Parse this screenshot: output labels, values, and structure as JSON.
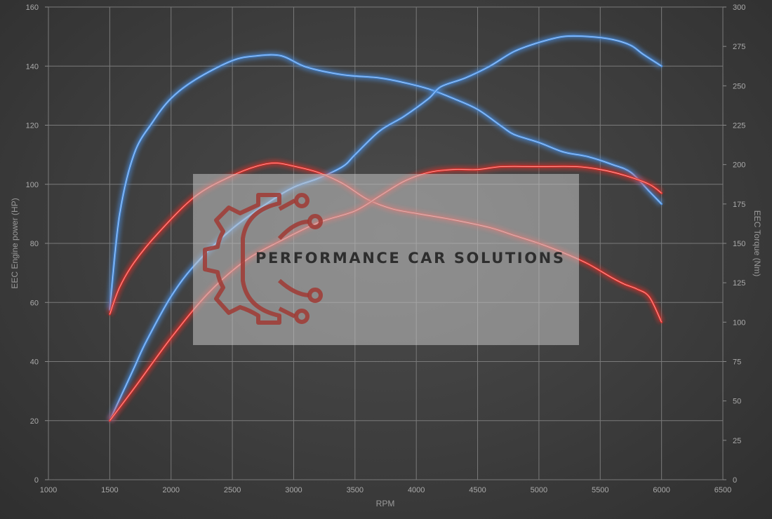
{
  "chart_data": {
    "type": "line",
    "xlabel": "RPM",
    "ylabel": "EEC Engine power (HP)",
    "y2label": "EEC Torque (Nm)",
    "xlim": [
      1000,
      6500
    ],
    "ylim": [
      0,
      160
    ],
    "y2lim": [
      0,
      300
    ],
    "x_ticks": [
      1000,
      1500,
      2000,
      2500,
      3000,
      3500,
      4000,
      4500,
      5000,
      5500,
      6000,
      6500
    ],
    "y_ticks": [
      0,
      20,
      40,
      60,
      80,
      100,
      120,
      140,
      160
    ],
    "y2_ticks": [
      0,
      25,
      50,
      75,
      100,
      125,
      150,
      175,
      200,
      225,
      250,
      275,
      300
    ],
    "grid": true,
    "series": [
      {
        "axis": "right",
        "color": "#4a90e2",
        "x": [
          1500,
          1580,
          1700,
          1850,
          2000,
          2200,
          2500,
          2700,
          2900,
          3100,
          3400,
          3700,
          3900,
          4100,
          4300,
          4500,
          4700,
          4800,
          5000,
          5200,
          5400,
          5600,
          5750,
          5900,
          6000
        ],
        "y": [
          108,
          168,
          207,
          227,
          242,
          254,
          266,
          269,
          269,
          262,
          257,
          255,
          252,
          248,
          242,
          235,
          224,
          219,
          214,
          208,
          205,
          200,
          195,
          183,
          175
        ]
      },
      {
        "axis": "left",
        "color": "#4a90e2",
        "x": [
          1500,
          1600,
          1700,
          1800,
          2000,
          2200,
          2500,
          2800,
          3000,
          3200,
          3400,
          3500,
          3700,
          3900,
          4100,
          4200,
          4400,
          4600,
          4800,
          5000,
          5200,
          5400,
          5600,
          5750,
          5850,
          6000
        ],
        "y": [
          20,
          29,
          38,
          47,
          62,
          73,
          85,
          94,
          99,
          102,
          106,
          110,
          118,
          123,
          129,
          133,
          136,
          140,
          145,
          148,
          150,
          150,
          149,
          147,
          144,
          140
        ]
      },
      {
        "axis": "right",
        "color": "#e0302b",
        "x": [
          1500,
          1580,
          1700,
          1900,
          2200,
          2500,
          2700,
          2850,
          3000,
          3200,
          3400,
          3600,
          3800,
          4000,
          4300,
          4600,
          4800,
          5000,
          5200,
          5400,
          5600,
          5700,
          5800,
          5900,
          6000
        ],
        "y": [
          105,
          122,
          138,
          157,
          180,
          193,
          199,
          201,
          199,
          195,
          188,
          178,
          172,
          169,
          165,
          160,
          155,
          150,
          144,
          137,
          128,
          124,
          121,
          116,
          100
        ]
      },
      {
        "axis": "left",
        "color": "#e0302b",
        "x": [
          1500,
          1700,
          2000,
          2300,
          2600,
          2900,
          3200,
          3500,
          3700,
          3900,
          4100,
          4300,
          4500,
          4700,
          5000,
          5300,
          5500,
          5700,
          5900,
          6000
        ],
        "y": [
          20,
          31,
          48,
          63,
          74,
          81,
          87,
          91,
          96,
          101,
          104,
          105,
          105,
          106,
          106,
          106,
          105,
          103,
          100,
          97
        ]
      }
    ]
  },
  "watermark": {
    "text": "PERFORMANCE CAR SOLUTIONS",
    "icon": "gear-circuit-icon"
  }
}
